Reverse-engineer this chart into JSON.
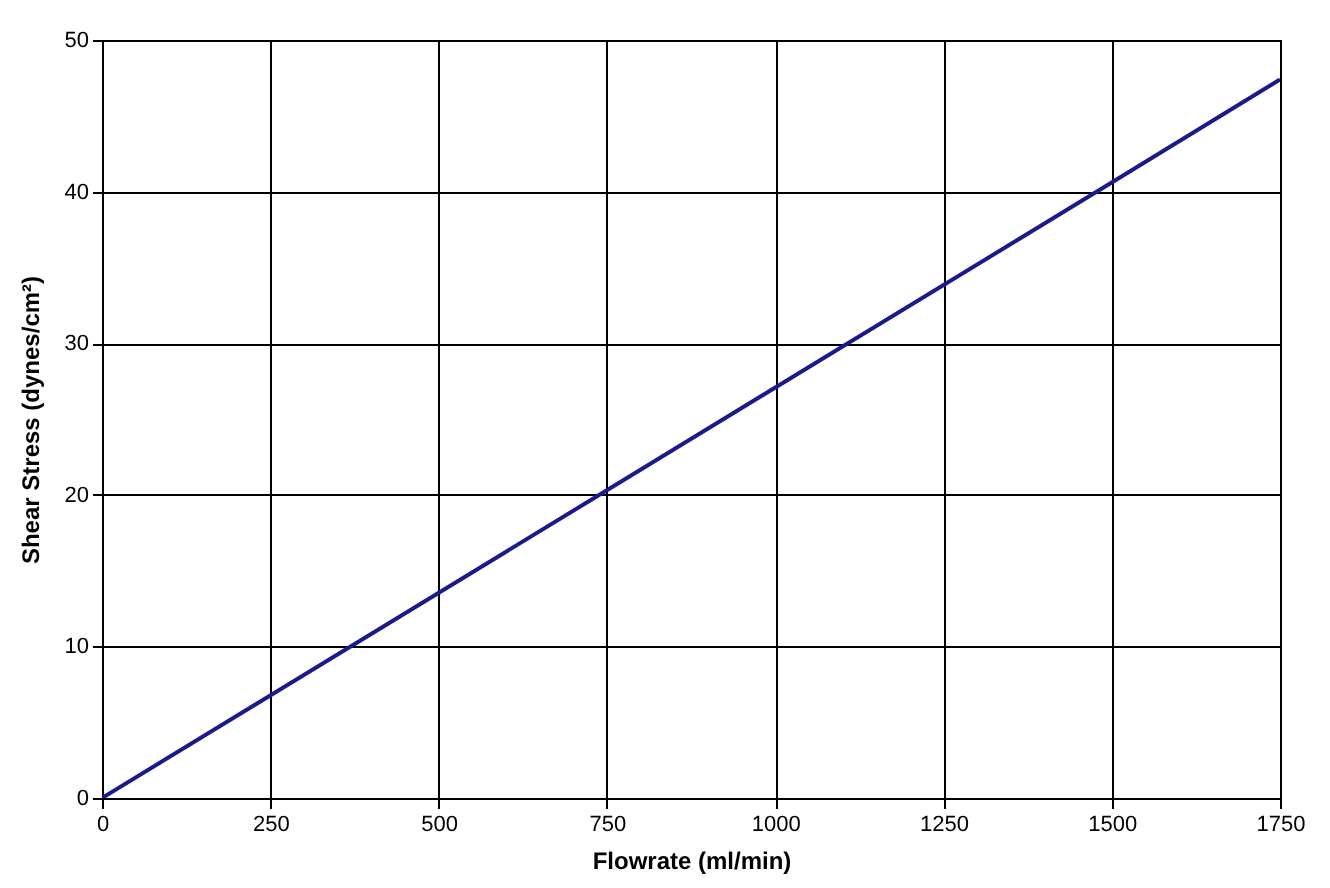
{
  "chart_data": {
    "type": "line",
    "xlabel": "Flowrate (ml/min)",
    "ylabel": "Shear Stress (dynes/cm²)",
    "x": [
      0,
      750,
      1500,
      1750
    ],
    "series": [
      {
        "color": "#1a1a8c",
        "values": [
          0,
          20.3,
          40.6,
          47.4
        ]
      }
    ],
    "xlim": [
      0,
      1750
    ],
    "xticks": [
      0,
      250,
      500,
      750,
      1000,
      1250,
      1500,
      1750
    ],
    "ylim": [
      0,
      50
    ],
    "yticks": [
      0,
      10,
      20,
      30,
      40,
      50
    ],
    "grid": true,
    "marker": "none",
    "line_style": "solid"
  }
}
